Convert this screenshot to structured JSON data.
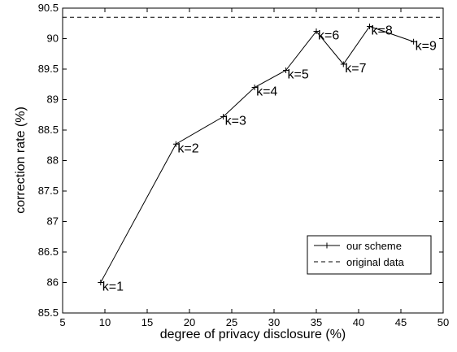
{
  "chart_data": {
    "type": "line",
    "title": "",
    "xlabel": "degree of privacy disclosure (%)",
    "ylabel": "correction rate (%)",
    "xlim": [
      5,
      50
    ],
    "ylim": [
      85.5,
      90.5
    ],
    "xticks": [
      5,
      10,
      15,
      20,
      25,
      30,
      35,
      40,
      45,
      50
    ],
    "yticks": [
      85.5,
      86,
      86.5,
      87,
      87.5,
      88,
      88.5,
      89,
      89.5,
      90,
      90.5
    ],
    "grid": false,
    "legend_position": "bottom-right",
    "series": [
      {
        "name": "our scheme",
        "style": "solid",
        "marker": "plus",
        "x": [
          9.5,
          18.4,
          24.0,
          27.7,
          31.4,
          35.0,
          38.2,
          41.3,
          46.5
        ],
        "y": [
          86.0,
          88.27,
          88.72,
          89.2,
          89.48,
          90.12,
          89.58,
          90.2,
          89.95
        ],
        "labels": [
          "k=1",
          "k=2",
          "k=3",
          "k=4",
          "k=5",
          "k=6",
          "k=7",
          "k=8",
          "k=9"
        ]
      },
      {
        "name": "original data",
        "style": "dashed",
        "y": 90.35
      }
    ]
  }
}
